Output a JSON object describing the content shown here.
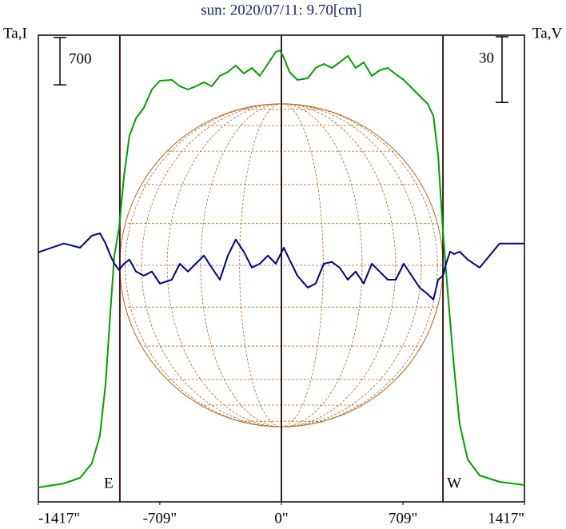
{
  "chart_data": {
    "type": "line",
    "title": "sun: 2020/07/11: 9.70[cm]",
    "ylabel": "Ta,I",
    "y2label": "Ta,V",
    "scale_bar": {
      "value": 700,
      "label": "700"
    },
    "scale_bar2": {
      "value": 30,
      "label": "30"
    },
    "xlim": [
      -1417,
      1417
    ],
    "xticks": [
      {
        "value": -1417,
        "label": "-1417\""
      },
      {
        "value": -709,
        "label": "-709\""
      },
      {
        "value": 0,
        "label": "0\""
      },
      {
        "value": 709,
        "label": "709\""
      },
      {
        "value": 1417,
        "label": "1417\""
      }
    ],
    "ylim": [
      0,
      6900
    ],
    "y2lim": [
      -108,
      105
    ],
    "vlines": [
      {
        "value": -942,
        "label": "E"
      },
      {
        "value": 0
      },
      {
        "value": 942,
        "label": "W"
      }
    ],
    "disk_radius": 942,
    "x": [
      -1417,
      -1268,
      -1174,
      -1105,
      -1058,
      -1025,
      -997,
      -974,
      -946,
      -918,
      -886,
      -848,
      -802,
      -755,
      -708,
      -639,
      -592,
      -545,
      -499,
      -452,
      -406,
      -359,
      -312,
      -266,
      -219,
      -172,
      -126,
      -79,
      -33,
      -9,
      14,
      47,
      93,
      154,
      200,
      247,
      294,
      340,
      387,
      433,
      480,
      527,
      573,
      620,
      667,
      713,
      760,
      806,
      853,
      886,
      914,
      942,
      960,
      983,
      1007,
      1039,
      1086,
      1156,
      1272,
      1417
    ],
    "series": [
      {
        "name": "Ta,I",
        "color": "#00a000",
        "values": [
          213,
          272,
          354,
          567,
          981,
          1749,
          2812,
          3639,
          4053,
          4821,
          5411,
          5671,
          5825,
          6097,
          6227,
          6238,
          6144,
          6097,
          6144,
          6203,
          6144,
          6297,
          6356,
          6451,
          6333,
          6416,
          6297,
          6475,
          6652,
          6675,
          6569,
          6356,
          6238,
          6262,
          6416,
          6475,
          6416,
          6498,
          6593,
          6416,
          6498,
          6297,
          6380,
          6416,
          6321,
          6238,
          6120,
          6002,
          5884,
          5707,
          5116,
          3993,
          3403,
          2694,
          1985,
          1158,
          626,
          390,
          295,
          248
        ]
      },
      {
        "name": "Ta,V",
        "color": "#000090",
        "axis": "y2",
        "values": [
          5.9,
          9.9,
          8.0,
          13.5,
          14.6,
          9.9,
          4.4,
          0.7,
          -2.2,
          0.7,
          2.6,
          -2.9,
          -4.8,
          -2.9,
          -8.4,
          -6.6,
          0.7,
          -2.9,
          0.7,
          4.4,
          -1.1,
          -6.6,
          4.4,
          11.7,
          6.2,
          -1.1,
          0.7,
          4.4,
          0.7,
          4.4,
          8.0,
          2.6,
          -4.8,
          -10.2,
          -8.4,
          0.7,
          1.5,
          -1.1,
          -6.6,
          -2.9,
          -8.4,
          0.7,
          -2.9,
          -6.6,
          -6.6,
          0.7,
          -4.8,
          -10.2,
          -13.2,
          -15.7,
          -6.6,
          -4.8,
          0.7,
          6.2,
          5.1,
          6.2,
          2.6,
          -1.1,
          9.9,
          9.9
        ]
      }
    ]
  }
}
